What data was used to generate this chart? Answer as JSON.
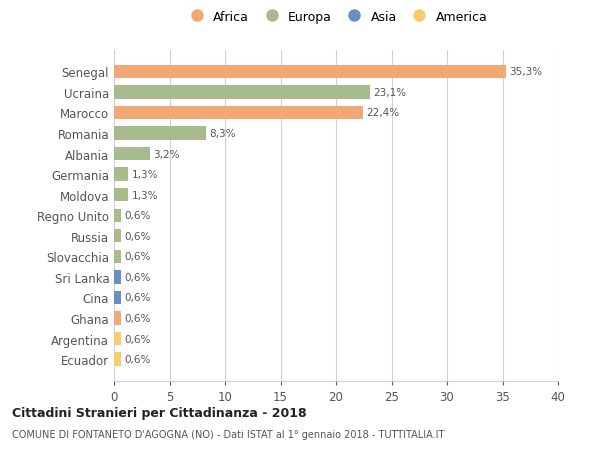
{
  "countries": [
    "Ecuador",
    "Argentina",
    "Ghana",
    "Cina",
    "Sri Lanka",
    "Slovacchia",
    "Russia",
    "Regno Unito",
    "Moldova",
    "Germania",
    "Albania",
    "Romania",
    "Marocco",
    "Ucraina",
    "Senegal"
  ],
  "values": [
    0.6,
    0.6,
    0.6,
    0.6,
    0.6,
    0.6,
    0.6,
    0.6,
    1.3,
    1.3,
    3.2,
    8.3,
    22.4,
    23.1,
    35.3
  ],
  "labels": [
    "0,6%",
    "0,6%",
    "0,6%",
    "0,6%",
    "0,6%",
    "0,6%",
    "0,6%",
    "0,6%",
    "1,3%",
    "1,3%",
    "3,2%",
    "8,3%",
    "22,4%",
    "23,1%",
    "35,3%"
  ],
  "continents": [
    "America",
    "America",
    "Africa",
    "Asia",
    "Asia",
    "Europa",
    "Europa",
    "Europa",
    "Europa",
    "Europa",
    "Europa",
    "Europa",
    "Africa",
    "Europa",
    "Africa"
  ],
  "colors": {
    "Africa": "#F0A875",
    "Europa": "#A8BB8C",
    "Asia": "#6B8FC0",
    "America": "#F5CC6E"
  },
  "legend_order": [
    "Africa",
    "Europa",
    "Asia",
    "America"
  ],
  "title1": "Cittadini Stranieri per Cittadinanza - 2018",
  "title2": "COMUNE DI FONTANETO D'AGOGNA (NO) - Dati ISTAT al 1° gennaio 2018 - TUTTITALIA.IT",
  "xlim": [
    0,
    40
  ],
  "xticks": [
    0,
    5,
    10,
    15,
    20,
    25,
    30,
    35,
    40
  ],
  "background_color": "#ffffff",
  "grid_color": "#d0d0d0",
  "bar_height": 0.65
}
